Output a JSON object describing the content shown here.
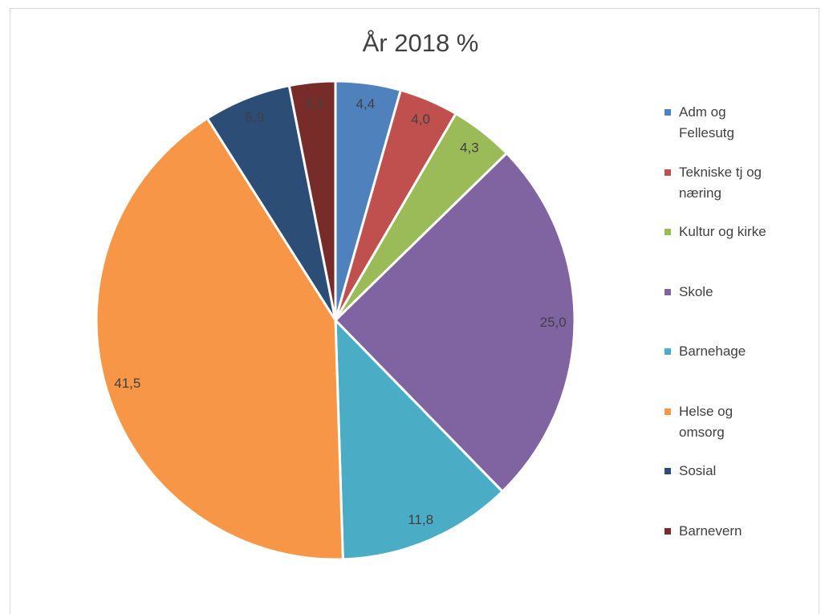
{
  "chart_data": {
    "type": "pie",
    "title": "År 2018 %",
    "categories": [
      "Adm og Fellesutg",
      "Tekniske tj og næring",
      "Kultur og kirke",
      "Skole",
      "Barnehage",
      "Helse og omsorg",
      "Sosial",
      "Barnevern"
    ],
    "values": [
      4.4,
      4.0,
      4.3,
      25.0,
      11.8,
      41.5,
      5.9,
      3.1
    ],
    "value_labels": [
      "4,4",
      "4,0",
      "4,3",
      "25,0",
      "11,8",
      "41,5",
      "5,9",
      "3,1"
    ],
    "colors": [
      "#4f81bd",
      "#c0504d",
      "#9bbb59",
      "#8064a2",
      "#4bacc6",
      "#f79646",
      "#2c4d75",
      "#772c2a"
    ],
    "legend": "right"
  }
}
